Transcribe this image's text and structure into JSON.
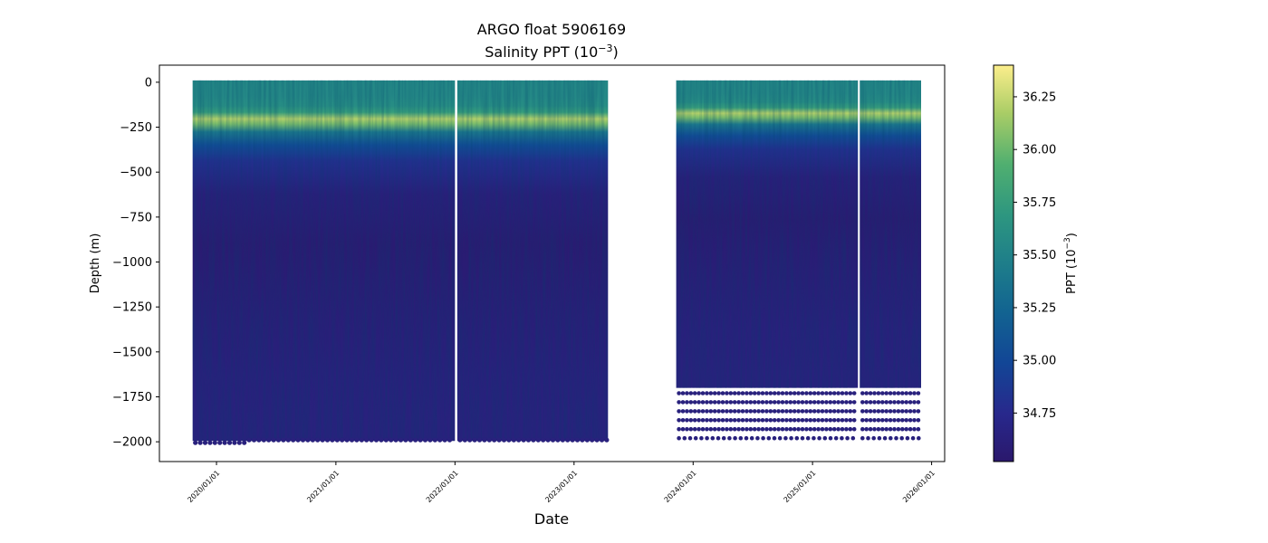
{
  "chart_data": {
    "type": "scatter",
    "title": "ARGO float 5906169",
    "subtitle": "Salinity PPT (10",
    "subtitle_exp": "−3",
    "subtitle_close": ")",
    "xlabel": "Date",
    "ylabel": "Depth (m)",
    "colorbar_label": "PPT (10",
    "colorbar_label_exp": "−3",
    "colorbar_label_close": ")",
    "colormap": "haline",
    "colorbar_range": [
      34.52,
      36.4
    ],
    "colorbar_ticks": [
      34.75,
      35.0,
      35.25,
      35.5,
      35.75,
      36.0,
      36.25
    ],
    "colorbar_tick_labels": [
      "34.75",
      "35.00",
      "35.25",
      "35.50",
      "35.75",
      "36.00",
      "36.25"
    ],
    "xlim": [
      "2019-07-10",
      "2026-02-10"
    ],
    "ylim": [
      -2110,
      95
    ],
    "x_ticks": [
      "2020-01-01",
      "2021-01-01",
      "2022-01-01",
      "2023-01-01",
      "2024-01-01",
      "2025-01-01",
      "2026-01-01"
    ],
    "x_tick_labels": [
      "2020/01/01",
      "2021/01/01",
      "2022/01/01",
      "2023/01/01",
      "2024/01/01",
      "2025/01/01",
      "2026/01/01"
    ],
    "y_ticks": [
      0,
      -250,
      -500,
      -750,
      -1000,
      -1250,
      -1500,
      -1750,
      -2000
    ],
    "y_tick_labels": [
      "0",
      "−250",
      "−500",
      "−750",
      "−1000",
      "−1250",
      "−1500",
      "−1750",
      "−2000"
    ],
    "grid": false,
    "segments": [
      {
        "start": "2019-10-20",
        "end": "2022-01-01",
        "max_depth": -1985,
        "dense_to": -1985,
        "deep_rows": []
      },
      {
        "start": "2022-01-08",
        "end": "2023-04-15",
        "max_depth": -1985,
        "dense_to": -1985,
        "deep_rows": []
      },
      {
        "start": "2023-11-10",
        "end": "2025-05-20",
        "max_depth": -1980,
        "dense_to": -1690,
        "deep_rows": [
          -1730,
          -1780,
          -1830,
          -1880,
          -1930,
          -1980
        ]
      },
      {
        "start": "2025-05-26",
        "end": "2025-11-30",
        "max_depth": -1980,
        "dense_to": -1690,
        "deep_rows": [
          -1730,
          -1780,
          -1830,
          -1880,
          -1930,
          -1980
        ]
      }
    ],
    "salinity_profile": [
      {
        "depth": 0,
        "value": 35.55
      },
      {
        "depth": -60,
        "value": 35.6
      },
      {
        "depth": -100,
        "value": 35.75
      },
      {
        "depth": -140,
        "value": 36.2
      },
      {
        "depth": -170,
        "value": 36.05
      },
      {
        "depth": -220,
        "value": 35.4
      },
      {
        "depth": -300,
        "value": 35.05
      },
      {
        "depth": -400,
        "value": 34.8
      },
      {
        "depth": -600,
        "value": 34.62
      },
      {
        "depth": -900,
        "value": 34.56
      },
      {
        "depth": -1300,
        "value": 34.6
      },
      {
        "depth": -1700,
        "value": 34.63
      },
      {
        "depth": -2000,
        "value": 34.64
      }
    ]
  }
}
